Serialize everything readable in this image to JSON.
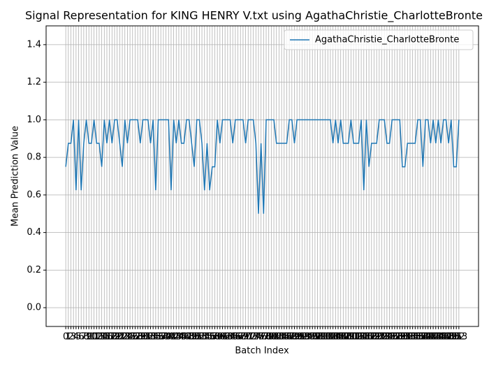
{
  "chart_data": {
    "type": "line",
    "title": "Signal Representation for KING HENRY V.txt using AgathaChristie_CharlotteBronte",
    "xlabel": "Batch Index",
    "ylabel": "Mean Prediction Value",
    "x": [
      0,
      1,
      2,
      3,
      4,
      5,
      6,
      7,
      8,
      9,
      10,
      11,
      12,
      13,
      14,
      15,
      16,
      17,
      18,
      19,
      20,
      21,
      22,
      23,
      24,
      25,
      26,
      27,
      28,
      29,
      30,
      31,
      32,
      33,
      34,
      35,
      36,
      37,
      38,
      39,
      40,
      41,
      42,
      43,
      44,
      45,
      46,
      47,
      48,
      49,
      50,
      51,
      52,
      53,
      54,
      55,
      56,
      57,
      58,
      59,
      60,
      61,
      62,
      63,
      64,
      65,
      66,
      67,
      68,
      69,
      70,
      71,
      72,
      73,
      74,
      75,
      76,
      77,
      78,
      79,
      80,
      81,
      82,
      83,
      84,
      85,
      86,
      87,
      88,
      89,
      90,
      91,
      92,
      93,
      94,
      95,
      96,
      97,
      98,
      99,
      100,
      101,
      102,
      103,
      104,
      105,
      106,
      107,
      108,
      109,
      110,
      111,
      112,
      113,
      114,
      115,
      116,
      117,
      118,
      119,
      120,
      121,
      122,
      123,
      124,
      125,
      126,
      127,
      128,
      129,
      130,
      131,
      132,
      133,
      134,
      135,
      136,
      137,
      138,
      139,
      140,
      141,
      142,
      143,
      144,
      145,
      146,
      147,
      148,
      149,
      150,
      151,
      152,
      153
    ],
    "series": [
      {
        "name": "AgathaChristie_CharlotteBronte",
        "color": "#1f77b4",
        "values": [
          0.75,
          0.875,
          0.875,
          1,
          0.625,
          1,
          0.625,
          0.875,
          1,
          0.875,
          0.875,
          1,
          0.875,
          0.875,
          0.75,
          1,
          0.875,
          1,
          0.875,
          1,
          1,
          0.875,
          0.75,
          1,
          0.875,
          1,
          1,
          1,
          1,
          0.875,
          1,
          1,
          1,
          0.875,
          1,
          0.625,
          1,
          1,
          1,
          1,
          1,
          0.625,
          1,
          0.875,
          1,
          0.875,
          0.875,
          1,
          1,
          0.875,
          0.75,
          1,
          1,
          0.875,
          0.625,
          0.875,
          0.625,
          0.75,
          0.75,
          1,
          0.875,
          1,
          1,
          1,
          1,
          0.875,
          1,
          1,
          1,
          1,
          0.875,
          1,
          1,
          1,
          0.875,
          0.5,
          0.875,
          0.5,
          1,
          1,
          1,
          1,
          0.875,
          0.875,
          0.875,
          0.875,
          0.875,
          1,
          1,
          0.875,
          1,
          1,
          1,
          1,
          1,
          1,
          1,
          1,
          1,
          1,
          1,
          1,
          1,
          1,
          0.875,
          1,
          0.875,
          1,
          0.875,
          0.875,
          0.875,
          1,
          0.875,
          0.875,
          0.875,
          1,
          0.625,
          1,
          0.75,
          0.875,
          0.875,
          0.875,
          1,
          1,
          1,
          0.875,
          0.875,
          1,
          1,
          1,
          1,
          0.75,
          0.75,
          0.875,
          0.875,
          0.875,
          0.875,
          1,
          1,
          0.75,
          1,
          1,
          0.875,
          1,
          0.875,
          1,
          0.875,
          1,
          1,
          0.875,
          1,
          0.75,
          0.75,
          1
        ]
      }
    ],
    "xlim": [
      -7.65,
      160.65
    ],
    "ylim": [
      -0.1,
      1.5
    ],
    "yticks": [
      {
        "value": 0,
        "label": "0.0"
      },
      {
        "value": 0.2,
        "label": "0.2"
      },
      {
        "value": 0.4,
        "label": "0.4"
      },
      {
        "value": 0.6,
        "label": "0.6"
      },
      {
        "value": 0.8,
        "label": "0.8"
      },
      {
        "value": 1,
        "label": "1.0"
      },
      {
        "value": 1.2,
        "label": "1.2"
      },
      {
        "value": 1.4,
        "label": "1.4"
      }
    ],
    "grid": true,
    "legend": "upper right"
  }
}
